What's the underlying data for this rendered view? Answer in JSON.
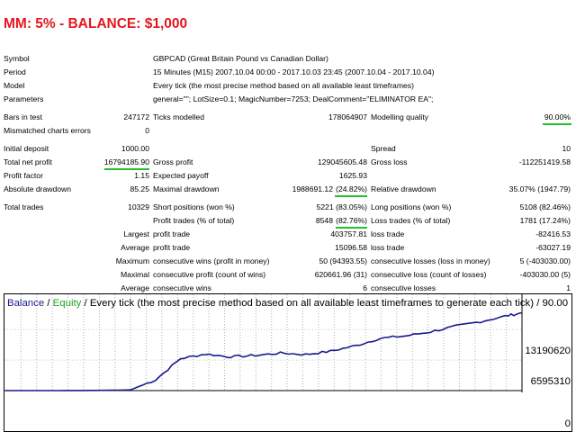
{
  "headline": "MM: 5% - BALANCE: $1,000",
  "info": {
    "symbol_label": "Symbol",
    "symbol_value": "GBPCAD (Great Britain Pound vs Canadian Dollar)",
    "period_label": "Period",
    "period_value": "15 Minutes (M15) 2007.10.04 00:00 - 2017.10.03 23:45 (2007.10.04 - 2017.10.04)",
    "model_label": "Model",
    "model_value": "Every tick (the most precise method based on all available least timeframes)",
    "params_label": "Parameters",
    "params_value": "general=\"\"; LotSize=0.1; MagicNumber=7253; DealComment=\"ELIMINATOR EA\";"
  },
  "stats": {
    "bars_label": "Bars in test",
    "bars_value": "247172",
    "ticks_label": "Ticks modelled",
    "ticks_value": "178064907",
    "quality_label": "Modelling quality",
    "quality_value": "90.00%",
    "mismatch_label": "Mismatched charts errors",
    "mismatch_value": "0",
    "deposit_label": "Initial deposit",
    "deposit_value": "1000.00",
    "spread_label": "Spread",
    "spread_value": "10",
    "netprofit_label": "Total net profit",
    "netprofit_value": "16794185.90",
    "grossprofit_label": "Gross profit",
    "grossprofit_value": "129045605.48",
    "grossloss_label": "Gross loss",
    "grossloss_value": "-112251419.58",
    "pf_label": "Profit factor",
    "pf_value": "1.15",
    "payoff_label": "Expected payoff",
    "payoff_value": "1625.93",
    "absdd_label": "Absolute drawdown",
    "absdd_value": "85.25",
    "maxdd_label": "Maximal drawdown",
    "maxdd_value": "1988691.12",
    "maxdd_pct": "(24.82%)",
    "reldd_label": "Relative drawdown",
    "reldd_value": "35.07% (1947.79)",
    "trades_label": "Total trades",
    "trades_value": "10329",
    "short_label": "Short positions (won %)",
    "short_value": "5221 (83.05%)",
    "long_label": "Long positions (won %)",
    "long_value": "5108 (82.46%)",
    "ptrades_label": "Profit trades (% of total)",
    "ptrades_value": "8548",
    "ptrades_pct": "(82.76%)",
    "ltrades_label": "Loss trades (% of total)",
    "ltrades_value": "1781 (17.24%)",
    "largest_label": "Largest",
    "largest_pt_label": "profit trade",
    "largest_pt_value": "403757.81",
    "largest_lt_label": "loss trade",
    "largest_lt_value": "-82416.53",
    "average_label": "Average",
    "average_pt_label": "profit trade",
    "average_pt_value": "15096.58",
    "average_lt_label": "loss trade",
    "average_lt_value": "-63027.19",
    "maximum_label": "Maximum",
    "max_cw_label": "consecutive wins (profit in money)",
    "max_cw_value": "50 (94393.55)",
    "max_cl_label": "consecutive losses (loss in money)",
    "max_cl_value": "5 (-403030.00)",
    "maximal_label": "Maximal",
    "mal_cp_label": "consecutive profit (count of wins)",
    "mal_cp_value": "620661.96 (31)",
    "mal_cl_label": "consecutive loss (count of losses)",
    "mal_cl_value": "-403030.00 (5)",
    "avg_cons_label": "Average",
    "avg_cw_label": "consecutive wins",
    "avg_cw_value": "6",
    "avg_cl_label": "consecutive losses",
    "avg_cl_value": "1"
  },
  "chart": {
    "legend_balance": "Balance",
    "legend_sep": " / ",
    "legend_equity": "Equity",
    "legend_rest": " / Every tick (the most precise method based on all available least timeframes to generate each tick) / 90.00",
    "y_tick_top": "13190620",
    "y_tick_mid": "6595310",
    "y_tick_zero": "0",
    "line_color": "#1a1a8c",
    "balance_color": "#1a1a8c",
    "equity_color": "#22a022"
  },
  "chart_data": {
    "type": "line",
    "title": "Balance / Equity / Every tick (the most precise method based on all available least timeframes to generate each tick) / 90.00",
    "ylim": [
      0,
      17500000
    ],
    "y_ticks": [
      0,
      6595310,
      13190620
    ],
    "x": [
      0,
      500,
      1000,
      1500,
      2000,
      2500,
      3000,
      3500,
      4000,
      4500,
      5000,
      5500,
      6000,
      6500,
      7000,
      7500,
      8000,
      8500,
      9000,
      9500,
      10000,
      10329
    ],
    "series": [
      {
        "name": "Balance",
        "values": [
          1000,
          2000,
          5000,
          20000,
          60000,
          150000,
          2300000,
          6900000,
          7900000,
          7300000,
          7600000,
          8100000,
          7800000,
          8500000,
          9700000,
          11300000,
          11800000,
          12700000,
          13900000,
          14900000,
          16100000,
          16794186
        ]
      }
    ],
    "grid": true
  }
}
